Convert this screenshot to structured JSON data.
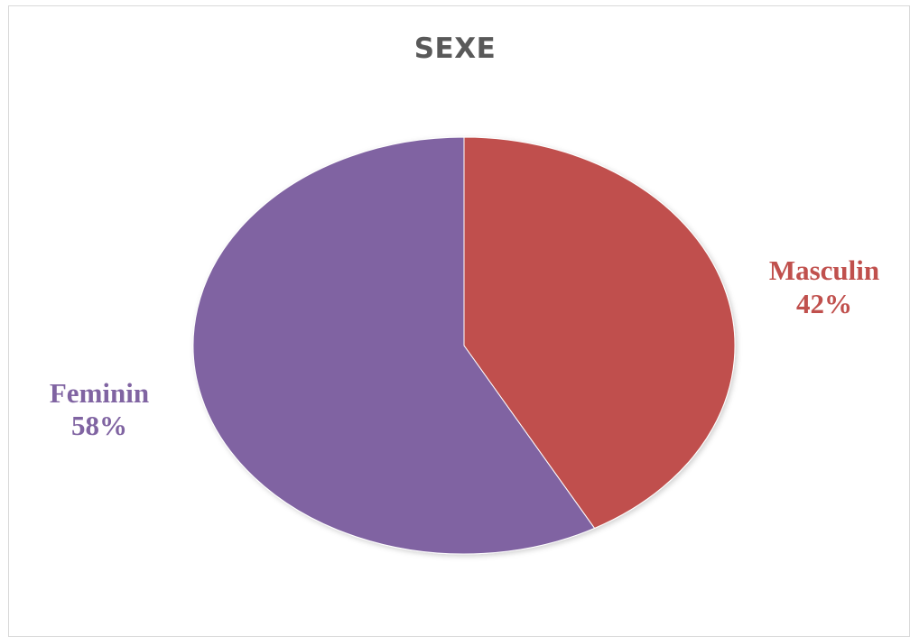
{
  "chart_data": {
    "type": "pie",
    "title": "SEXE",
    "slices": [
      {
        "label": "Masculin",
        "value": 42,
        "percent_label": "42%",
        "color": "#c0504d"
      },
      {
        "label": "Feminin",
        "value": 58,
        "percent_label": "58%",
        "color": "#8064a2"
      }
    ],
    "start_angle": "12 o'clock, clockwise",
    "legend": "none (data labels outside slices)"
  }
}
